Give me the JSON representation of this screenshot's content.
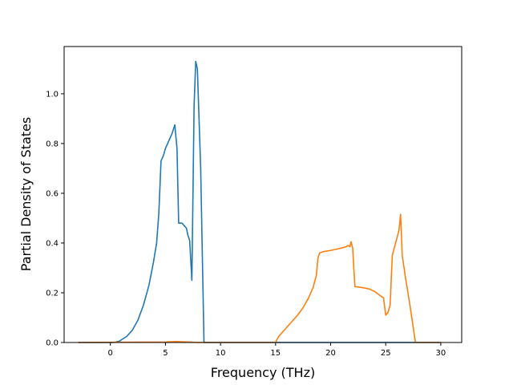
{
  "chart_data": {
    "type": "line",
    "title": "",
    "xlabel": "Frequency (THz)",
    "ylabel": "Partial Density of States",
    "xlim": [
      -4.2,
      31.9
    ],
    "ylim": [
      0,
      1.19
    ],
    "xticks": [
      0,
      5,
      10,
      15,
      20,
      25,
      30
    ],
    "yticks": [
      0.0,
      0.2,
      0.4,
      0.6,
      0.8,
      1.0
    ],
    "xtick_labels": [
      "0",
      "5",
      "10",
      "15",
      "20",
      "25",
      "30"
    ],
    "ytick_labels": [
      "0.0",
      "0.2",
      "0.4",
      "0.6",
      "0.8",
      "1.0"
    ],
    "grid": false,
    "legend": "none",
    "series": [
      {
        "color": "#1f77b4",
        "x": [
          -2.9,
          0.3,
          0.8,
          1.5,
          2.0,
          2.5,
          3.0,
          3.5,
          3.9,
          4.2,
          4.4,
          4.6,
          4.8,
          5.0,
          5.3,
          5.6,
          5.85,
          6.05,
          6.2,
          6.5,
          6.9,
          7.05,
          7.2,
          7.4,
          7.6,
          7.75,
          7.9,
          8.2,
          8.5,
          8.6,
          30.0
        ],
        "y": [
          0.0,
          0.0,
          0.005,
          0.025,
          0.05,
          0.09,
          0.15,
          0.23,
          0.32,
          0.4,
          0.52,
          0.73,
          0.75,
          0.78,
          0.81,
          0.84,
          0.875,
          0.78,
          0.48,
          0.48,
          0.46,
          0.43,
          0.41,
          0.25,
          0.95,
          1.13,
          1.1,
          0.7,
          0.0,
          0.0,
          0.0
        ]
      },
      {
        "color": "#ff7f0e",
        "x": [
          -2.9,
          5.0,
          6.0,
          7.0,
          8.0,
          15.0,
          15.1,
          15.3,
          15.6,
          16.0,
          16.5,
          17.0,
          17.5,
          18.0,
          18.4,
          18.7,
          18.85,
          19.0,
          19.3,
          19.6,
          20.0,
          20.5,
          21.0,
          21.4,
          21.6,
          21.75,
          21.85,
          22.0,
          22.2,
          23.0,
          23.5,
          24.0,
          24.3,
          24.6,
          24.8,
          25.0,
          25.2,
          25.4,
          25.6,
          25.9,
          26.2,
          26.35,
          26.5,
          26.8,
          27.2,
          27.7,
          30.0
        ],
        "y": [
          0.0,
          0.002,
          0.004,
          0.002,
          0.0,
          0.0,
          0.01,
          0.025,
          0.04,
          0.06,
          0.085,
          0.11,
          0.14,
          0.18,
          0.22,
          0.27,
          0.34,
          0.36,
          0.365,
          0.367,
          0.37,
          0.375,
          0.38,
          0.385,
          0.39,
          0.385,
          0.405,
          0.38,
          0.225,
          0.22,
          0.215,
          0.205,
          0.195,
          0.185,
          0.18,
          0.11,
          0.12,
          0.15,
          0.35,
          0.4,
          0.45,
          0.515,
          0.35,
          0.26,
          0.15,
          0.0,
          0.0
        ]
      }
    ]
  }
}
